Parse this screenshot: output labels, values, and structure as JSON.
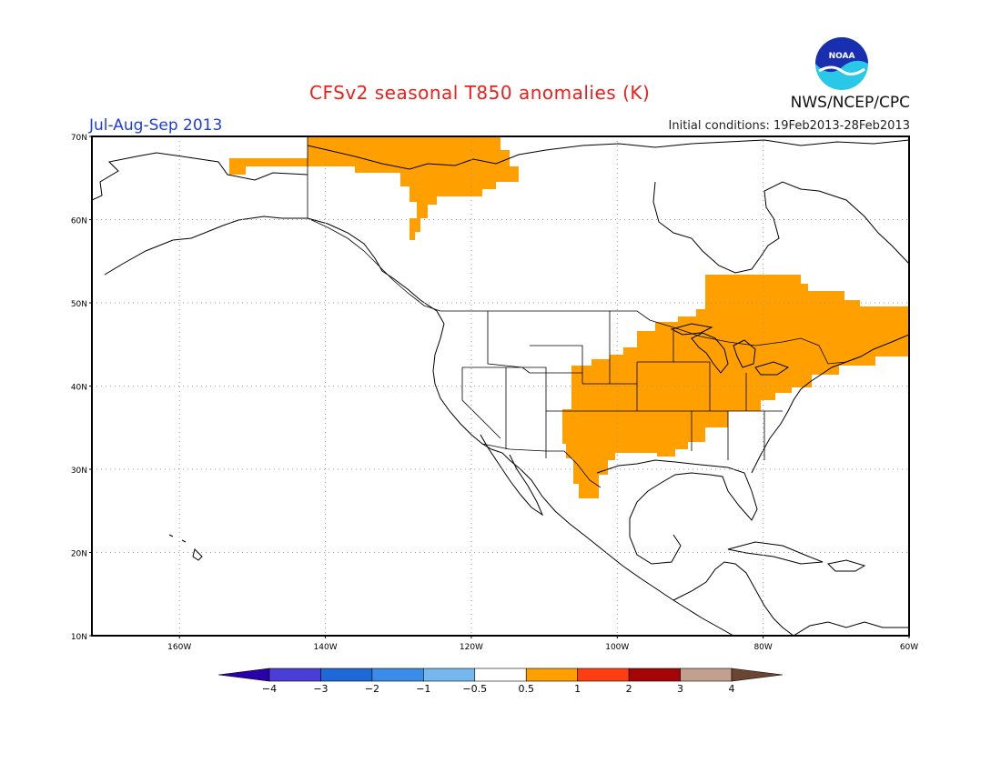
{
  "title": "CFSv2 seasonal T850 anomalies (K)",
  "season": "Jul-Aug-Sep 2013",
  "initial_conditions": "Initial conditions: 19Feb2013-28Feb2013",
  "agency": "NWS/NCEP/CPC",
  "logo_text": "NOAA",
  "map": {
    "lon_range": [
      -172,
      -60
    ],
    "lat_range": [
      10,
      70
    ],
    "lat_ticks": [
      {
        "value": 70,
        "label": "70N"
      },
      {
        "value": 60,
        "label": "60N"
      },
      {
        "value": 50,
        "label": "50N"
      },
      {
        "value": 40,
        "label": "40N"
      },
      {
        "value": 30,
        "label": "30N"
      },
      {
        "value": 20,
        "label": "20N"
      },
      {
        "value": 10,
        "label": "10N"
      }
    ],
    "lon_ticks": [
      {
        "value": -160,
        "label": "160W"
      },
      {
        "value": -140,
        "label": "140W"
      },
      {
        "value": -120,
        "label": "120W"
      },
      {
        "value": -100,
        "label": "100W"
      },
      {
        "value": -80,
        "label": "80W"
      },
      {
        "value": -60,
        "label": "60W"
      }
    ],
    "anomaly_color": "#ff9f00",
    "grid_color": "#999999"
  },
  "colorbar": {
    "colors": [
      "#2a00a8",
      "#4a3ed6",
      "#1e68d8",
      "#3a8ce8",
      "#74b8ef",
      "#ffffff",
      "#ff9f00",
      "#ff3d10",
      "#a50505",
      "#c2a090",
      "#6b4533"
    ],
    "labels": [
      "-4",
      "-3",
      "-2",
      "-1",
      "-0.5",
      "0.5",
      "1",
      "2",
      "3",
      "4"
    ]
  }
}
